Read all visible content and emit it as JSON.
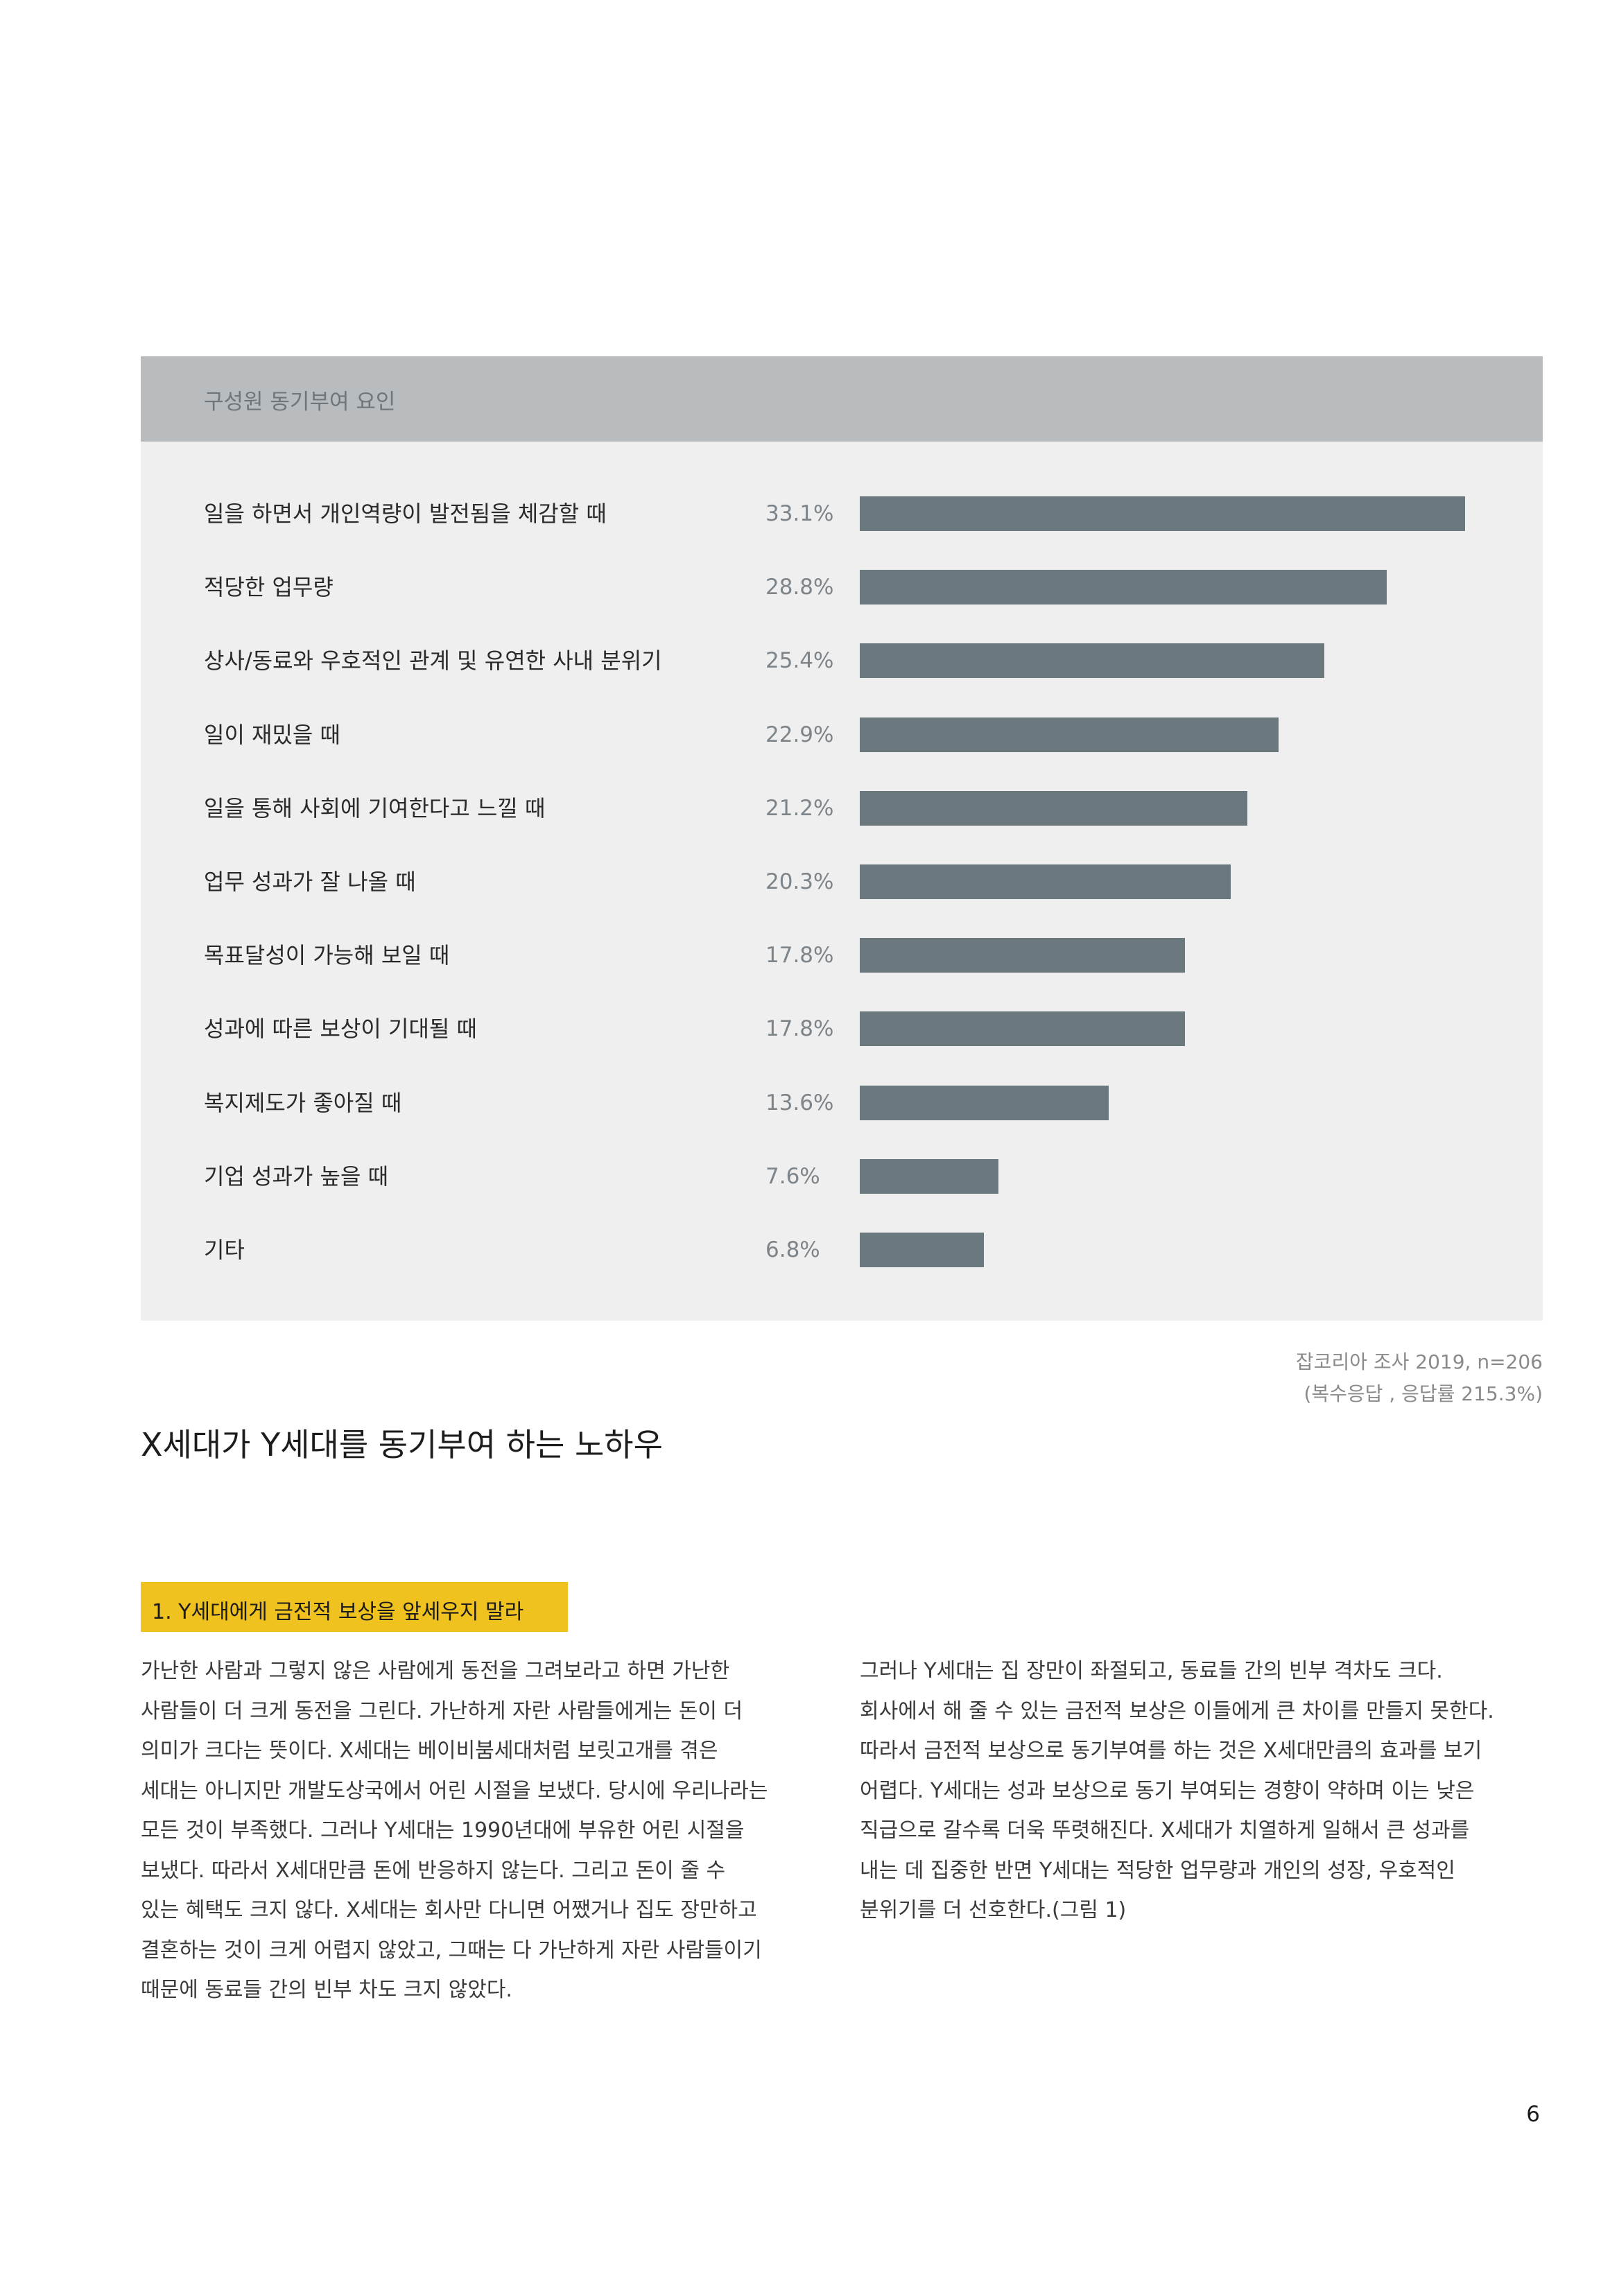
{
  "chart": {
    "title": "구성원 동기부여 요인"
  },
  "chart_data": {
    "type": "bar",
    "orientation": "horizontal",
    "title": "구성원 동기부여 요인",
    "categories": [
      "일을 하면서 개인역량이 발전됨을 체감할 때",
      "적당한 업무량",
      "상사/동료와 우호적인 관계 및 유연한 사내 분위기",
      "일이 재밌을 때",
      "일을 통해 사회에 기여한다고 느낄 때",
      "업무 성과가 잘 나올 때",
      "목표달성이 가능해 보일 때",
      "성과에 따른 보상이 기대될 때",
      "복지제도가 좋아질 때",
      "기업 성과가 높을 때",
      "기타"
    ],
    "values": [
      33.1,
      28.8,
      25.4,
      22.9,
      21.2,
      20.3,
      17.8,
      17.8,
      13.6,
      7.6,
      6.8
    ],
    "value_labels": [
      "33.1%",
      "28.8%",
      "25.4%",
      "22.9%",
      "21.2%",
      "20.3%",
      "17.8%",
      "17.8%",
      "13.6%",
      "7.6%",
      "6.8%"
    ],
    "xlim": [
      0,
      33.1
    ],
    "grid": false,
    "bar_color": "#6b787e"
  },
  "source": {
    "line1": "잡코리아 조사 2019, n=206",
    "line2": "(복수응답 , 응답률 215.3%)"
  },
  "section": {
    "title": "X세대가 Y세대를 동기부여 하는 노하우"
  },
  "tag": {
    "label": "1. Y세대에게 금전적 보상을 앞세우지 말라",
    "color": "#f0c21f"
  },
  "body": {
    "left_lines": [
      "가난한 사람과 그렇지 않은 사람에게 동전을 그려보라고 하면 가난한",
      "사람들이 더 크게 동전을 그린다. 가난하게 자란 사람들에게는 돈이 더",
      "의미가 크다는 뜻이다. X세대는 베이비붐세대처럼 보릿고개를 겪은",
      "세대는 아니지만 개발도상국에서 어린 시절을 보냈다. 당시에 우리나라는",
      "모든 것이 부족했다. 그러나 Y세대는 1990년대에 부유한 어린 시절을",
      "보냈다. 따라서 X세대만큼 돈에 반응하지 않는다. 그리고 돈이 줄 수",
      "있는 혜택도 크지 않다. X세대는 회사만 다니면 어쨌거나 집도 장만하고",
      "결혼하는 것이 크게 어렵지 않았고, 그때는 다 가난하게 자란 사람들이기",
      "때문에 동료들 간의 빈부 차도 크지 않았다."
    ],
    "right_lines": [
      "그러나 Y세대는 집 장만이 좌절되고, 동료들 간의 빈부 격차도 크다.",
      "회사에서 해 줄 수 있는 금전적 보상은 이들에게 큰 차이를 만들지 못한다.",
      "따라서 금전적 보상으로 동기부여를 하는 것은 X세대만큼의 효과를 보기",
      "어렵다. Y세대는 성과 보상으로 동기 부여되는 경향이 약하며 이는 낮은",
      "직급으로 갈수록 더욱 뚜렷해진다. X세대가 치열하게 일해서 큰 성과를",
      "내는 데 집중한 반면 Y세대는 적당한 업무량과 개인의 성장, 우호적인",
      "분위기를 더 선호한다.(그림 1)"
    ]
  },
  "page": {
    "number": "6"
  }
}
